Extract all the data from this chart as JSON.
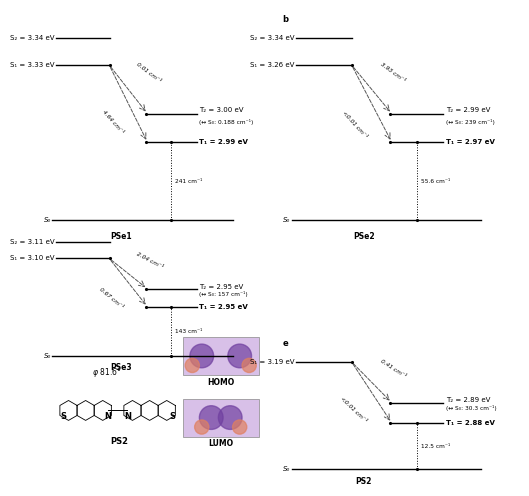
{
  "bg_color": "#ffffff",
  "panels": {
    "PSe1": {
      "name": "PSe1",
      "S2": "S₂ = 3.34 eV",
      "S1": "S₁ = 3.33 eV",
      "T2": "T₂ = 3.00 eV",
      "T2_sub": "(↔ S₀: 0.188 cm⁻¹)",
      "T1": "T₁ = 2.99 eV",
      "S0": "S₀",
      "SOCME_upper": "0.01 cm⁻¹",
      "SOCME_lower": "4.64 cm⁻¹",
      "gap_label": "241 cm⁻¹"
    },
    "PSe2": {
      "name": "PSe2",
      "S2": "S₂ = 3.34 eV",
      "S1": "S₁ = 3.26 eV",
      "T2": "T₂ = 2.99 eV",
      "T2_sub": "(↔ S₀: 239 cm⁻¹)",
      "T1": "T₁ = 2.97 eV",
      "S0": "S₀",
      "SOCME_upper": "3.93 cm⁻¹",
      "SOCME_lower": "<0.01 cm⁻¹",
      "gap_label": "55.6 cm⁻¹"
    },
    "PSe3": {
      "name": "PSe3",
      "S2": "S₂ = 3.11 eV",
      "S1": "S₁ = 3.10 eV",
      "T2": "T₂ = 2.95 eV",
      "T2_sub": "(↔ S₀: 157 cm⁻¹)",
      "T1": "T₁ = 2.95 eV",
      "S0": "S₀",
      "SOCME_upper": "2.04 cm⁻¹",
      "SOCME_lower": "0.67 cm⁻¹",
      "gap_label": "143 cm⁻¹"
    },
    "PS2": {
      "name": "PS2",
      "S1": "S₁ = 3.19 eV",
      "T2": "T₂ = 2.89 eV",
      "T2_sub": "(↔ S₀: 30.3 cm⁻¹)",
      "T1": "T₁ = 2.88 eV",
      "S0": "S₀",
      "SOCME_upper": "0.41 cm⁻¹",
      "SOCME_lower": "<0.01 cm⁻¹",
      "gap_label": "12.5 cm⁻¹"
    }
  }
}
